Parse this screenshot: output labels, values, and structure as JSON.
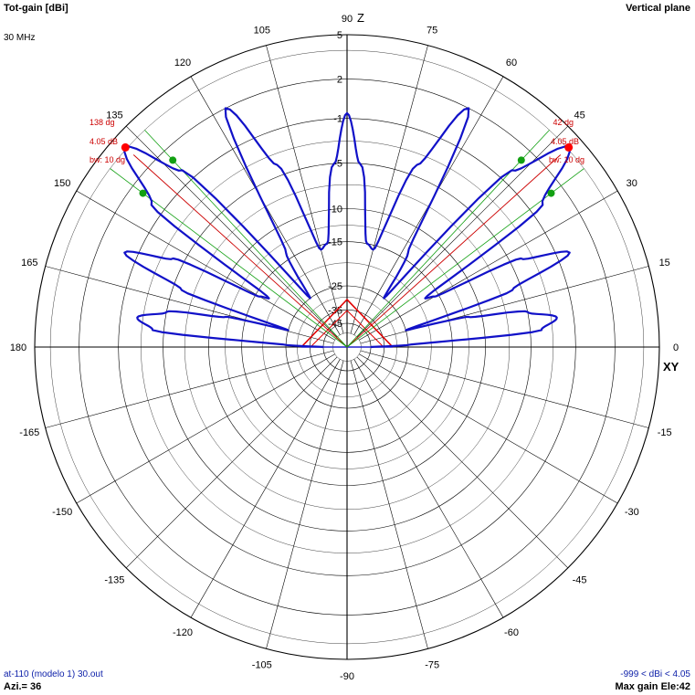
{
  "header": {
    "left_title": "Tot-gain [dBi]",
    "left_sub": "30 MHz",
    "right_title": "Vertical plane"
  },
  "footer": {
    "left_file": "at-110 (modelo 1) 30.out",
    "left_azi": "Azi.= 36",
    "right_range": "-999 < dBi < 4.05",
    "right_maxgain": "Max gain Ele:42"
  },
  "axis_labels": {
    "top": "Z",
    "right": "XY"
  },
  "chart_data": {
    "type": "polar",
    "title": "Tot-gain [dBi]",
    "frequency": "30 MHz",
    "plane": "Vertical plane",
    "angle_ticks": [
      0,
      15,
      30,
      45,
      60,
      75,
      90,
      105,
      120,
      135,
      150,
      165,
      180,
      -165,
      -150,
      -135,
      -120,
      -105,
      -90,
      -75,
      -60,
      -45,
      -30,
      -15
    ],
    "gain_rings": [
      {
        "value": 5,
        "label": "5"
      },
      {
        "value": 2,
        "label": "2"
      },
      {
        "value": -1,
        "label": "-1"
      },
      {
        "value": -5,
        "label": "-5"
      },
      {
        "value": -10,
        "label": "-10"
      },
      {
        "value": -15,
        "label": "-15"
      },
      {
        "value": -25,
        "label": "-25"
      },
      {
        "value": -35,
        "label": "-35"
      },
      {
        "value": -45,
        "label": "-45"
      }
    ],
    "max_gain_dbi": 4.05,
    "max_gain_elevation_deg": 42,
    "pattern_series": [
      {
        "angle": 0,
        "gain": -45
      },
      {
        "angle": 2,
        "gain": -25
      },
      {
        "angle": 5,
        "gain": -4
      },
      {
        "angle": 8,
        "gain": -2.5
      },
      {
        "angle": 11,
        "gain": -5
      },
      {
        "angle": 14,
        "gain": -12
      },
      {
        "angle": 16,
        "gain": -25
      },
      {
        "angle": 19,
        "gain": -6
      },
      {
        "angle": 23,
        "gain": 0
      },
      {
        "angle": 27,
        "gain": -4
      },
      {
        "angle": 30,
        "gain": -16
      },
      {
        "angle": 32,
        "gain": -18
      },
      {
        "angle": 36,
        "gain": 0
      },
      {
        "angle": 42,
        "gain": 4.05
      },
      {
        "angle": 47,
        "gain": 0
      },
      {
        "angle": 53,
        "gain": -25
      },
      {
        "angle": 57,
        "gain": -14
      },
      {
        "angle": 63,
        "gain": 2
      },
      {
        "angle": 69,
        "gain": -4
      },
      {
        "angle": 75,
        "gain": -16
      },
      {
        "angle": 79,
        "gain": -15
      },
      {
        "angle": 86,
        "gain": -5
      },
      {
        "angle": 90,
        "gain": -0.6
      },
      {
        "angle": 94,
        "gain": -5
      },
      {
        "angle": 101,
        "gain": -15
      },
      {
        "angle": 105,
        "gain": -16
      },
      {
        "angle": 111,
        "gain": -4
      },
      {
        "angle": 117,
        "gain": 2
      },
      {
        "angle": 123,
        "gain": -14
      },
      {
        "angle": 127,
        "gain": -25
      },
      {
        "angle": 133,
        "gain": 0
      },
      {
        "angle": 138,
        "gain": 4.05
      },
      {
        "angle": 144,
        "gain": 0
      },
      {
        "angle": 148,
        "gain": -18
      },
      {
        "angle": 150,
        "gain": -16
      },
      {
        "angle": 153,
        "gain": -4
      },
      {
        "angle": 157,
        "gain": 0
      },
      {
        "angle": 161,
        "gain": -6
      },
      {
        "angle": 164,
        "gain": -25
      },
      {
        "angle": 166,
        "gain": -12
      },
      {
        "angle": 169,
        "gain": -5
      },
      {
        "angle": 172,
        "gain": -2.5
      },
      {
        "angle": 175,
        "gain": -4
      },
      {
        "angle": 178,
        "gain": -25
      },
      {
        "angle": 180,
        "gain": -45
      }
    ],
    "beams": [
      {
        "angle": 42,
        "angle_label": "42 dg",
        "gain_label": "4.05 dB",
        "bw_label": "bw: 10 dg",
        "bw_from": 37,
        "bw_to": 47,
        "half_power_gain": 1.05
      },
      {
        "angle": 138,
        "angle_label": "138 dg",
        "gain_label": "4.05 dB",
        "bw_label": "bw: 10 dg",
        "bw_from": 133,
        "bw_to": 143,
        "half_power_gain": 1.05
      }
    ],
    "colors": {
      "pattern": "#1111c8",
      "grid": "#000000",
      "max_marker": "#ff0000",
      "bw_marker": "#12a012",
      "label_red": "#cc0000",
      "structure": "#e00000"
    }
  }
}
